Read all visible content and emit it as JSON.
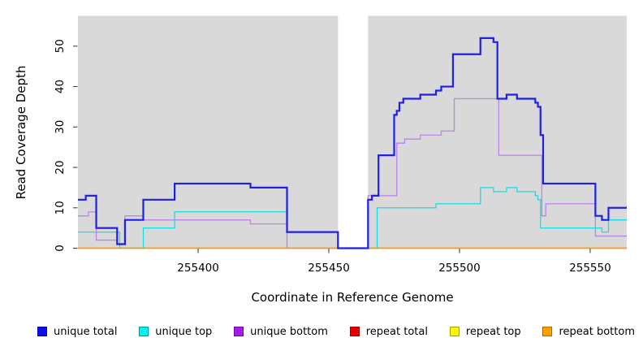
{
  "chart_data": {
    "type": "line",
    "subtype": "step-coverage",
    "title": "",
    "xlabel": "Coordinate in Reference Genome",
    "ylabel": "Read Coverage Depth",
    "xlim": [
      255354,
      255564
    ],
    "ylim": [
      0,
      57.5
    ],
    "xticks": [
      255400,
      255450,
      255500,
      255550
    ],
    "yticks": [
      0,
      10,
      20,
      30,
      40,
      50
    ],
    "grid": "off",
    "legend_position": "bottom",
    "panel_bg": "#d9d9d9",
    "gap_region": {
      "x0": 255453.5,
      "x1": 255465,
      "color": "#ffffff"
    },
    "series": [
      {
        "name": "unique total",
        "color": "#1f1fe8",
        "width": 2.2,
        "steps": [
          [
            255354,
            12
          ],
          [
            255357,
            13
          ],
          [
            255361,
            5
          ],
          [
            255369,
            1
          ],
          [
            255372,
            7
          ],
          [
            255379,
            12
          ],
          [
            255391,
            16
          ],
          [
            255420,
            15
          ],
          [
            255434,
            4
          ],
          [
            255453.5,
            0
          ],
          [
            255465,
            12
          ],
          [
            255466.5,
            13
          ],
          [
            255469,
            23
          ],
          [
            255475,
            33
          ],
          [
            255476,
            34
          ],
          [
            255477,
            36
          ],
          [
            255478.5,
            37
          ],
          [
            255485,
            38
          ],
          [
            255491,
            39
          ],
          [
            255493,
            40
          ],
          [
            255497.5,
            48
          ],
          [
            255508,
            52
          ],
          [
            255513,
            51
          ],
          [
            255514.5,
            37
          ],
          [
            255518,
            38
          ],
          [
            255522,
            37
          ],
          [
            255529,
            36
          ],
          [
            255530,
            35
          ],
          [
            255531,
            28
          ],
          [
            255532,
            16
          ],
          [
            255552,
            8
          ],
          [
            255554.5,
            7
          ],
          [
            255557,
            10
          ]
        ]
      },
      {
        "name": "unique top",
        "color": "#17dde3",
        "width": 1.3,
        "steps": [
          [
            255354,
            4
          ],
          [
            255370,
            0
          ],
          [
            255379,
            5
          ],
          [
            255391,
            9
          ],
          [
            255434,
            4
          ],
          [
            255453.5,
            0
          ],
          [
            255468.5,
            10
          ],
          [
            255491,
            11
          ],
          [
            255508,
            15
          ],
          [
            255513,
            14
          ],
          [
            255518,
            15
          ],
          [
            255522,
            14
          ],
          [
            255529,
            13
          ],
          [
            255530,
            12
          ],
          [
            255531,
            5
          ],
          [
            255554.5,
            4
          ],
          [
            255557,
            7
          ]
        ]
      },
      {
        "name": "unique bottom",
        "color": "#bd84e6",
        "width": 1.3,
        "steps": [
          [
            255354,
            8
          ],
          [
            255358,
            9
          ],
          [
            255361,
            2
          ],
          [
            255369,
            1
          ],
          [
            255372,
            8
          ],
          [
            255379,
            7
          ],
          [
            255420,
            6
          ],
          [
            255434,
            0
          ],
          [
            255465,
            13
          ],
          [
            255476,
            26
          ],
          [
            255479,
            27
          ],
          [
            255485,
            28
          ],
          [
            255493,
            29
          ],
          [
            255498,
            37
          ],
          [
            255515,
            23
          ],
          [
            255531.5,
            8
          ],
          [
            255533,
            11
          ],
          [
            255552,
            3
          ]
        ]
      },
      {
        "name": "repeat total",
        "color": "#e80000",
        "width": 1.3,
        "steps": [
          [
            255354,
            0
          ]
        ]
      },
      {
        "name": "repeat top",
        "color": "#f7f700",
        "width": 1.3,
        "steps": [
          [
            255354,
            0
          ]
        ]
      },
      {
        "name": "repeat bottom",
        "color": "#ff9d00",
        "width": 1.6,
        "steps": [
          [
            255354,
            0
          ]
        ]
      }
    ],
    "draw_order": [
      4,
      3,
      2,
      1,
      5,
      0
    ]
  },
  "legend": {
    "items": [
      {
        "label": "unique total",
        "fill": "#0d0de8",
        "border": "#0000b3"
      },
      {
        "label": "unique top",
        "fill": "#00f2f2",
        "border": "#00999e"
      },
      {
        "label": "unique bottom",
        "fill": "#a11fe0",
        "border": "#7a00b3"
      },
      {
        "label": "repeat total",
        "fill": "#e80000",
        "border": "#990000"
      },
      {
        "label": "repeat top",
        "fill": "#f7f700",
        "border": "#a3a300"
      },
      {
        "label": "repeat bottom",
        "fill": "#ffa000",
        "border": "#b36b00"
      }
    ]
  }
}
